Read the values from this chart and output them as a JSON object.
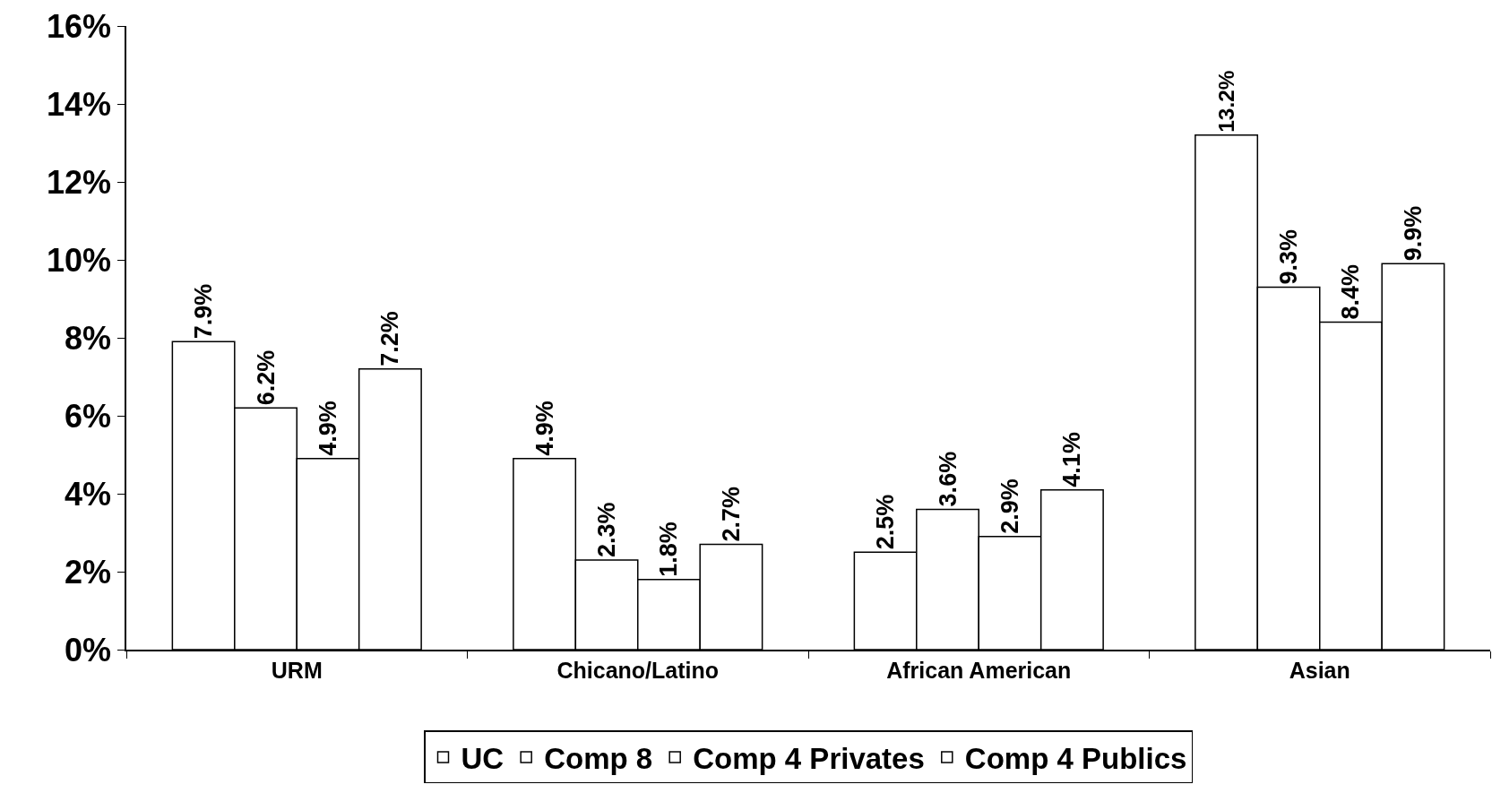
{
  "chart_data": {
    "type": "bar",
    "categories": [
      "URM",
      "Chicano/Latino",
      "African American",
      "Asian"
    ],
    "series": [
      {
        "name": "UC",
        "color": "#ffffff",
        "values": [
          7.9,
          4.9,
          2.5,
          13.2
        ],
        "value_labels": [
          "7.9%",
          "4.9%",
          "2.5%",
          "13.2%"
        ]
      },
      {
        "name": "Comp 8",
        "color": "#ffffff",
        "values": [
          6.2,
          2.3,
          3.6,
          9.3
        ],
        "value_labels": [
          "6.2%",
          "2.3%",
          "3.6%",
          "9.3%"
        ]
      },
      {
        "name": "Comp 4 Privates",
        "color": "#ffffff",
        "values": [
          4.9,
          1.8,
          2.9,
          8.4
        ],
        "value_labels": [
          "4.9%",
          "1.8%",
          "2.9%",
          "8.4%"
        ]
      },
      {
        "name": "Comp 4 Publics",
        "color": "#ffffff",
        "values": [
          7.2,
          2.7,
          4.1,
          9.9
        ],
        "value_labels": [
          "7.2%",
          "2.7%",
          "4.1%",
          "9.9%"
        ]
      }
    ],
    "ylim": [
      0,
      16
    ],
    "yticks": [
      {
        "value": 0,
        "label": "0%"
      },
      {
        "value": 2,
        "label": "2%"
      },
      {
        "value": 4,
        "label": "4%"
      },
      {
        "value": 6,
        "label": "6%"
      },
      {
        "value": 8,
        "label": "8%"
      },
      {
        "value": 10,
        "label": "10%"
      },
      {
        "value": 12,
        "label": "12%"
      },
      {
        "value": 14,
        "label": "14%"
      },
      {
        "value": 16,
        "label": "16%"
      }
    ],
    "grid": false,
    "legend": "bottom"
  }
}
